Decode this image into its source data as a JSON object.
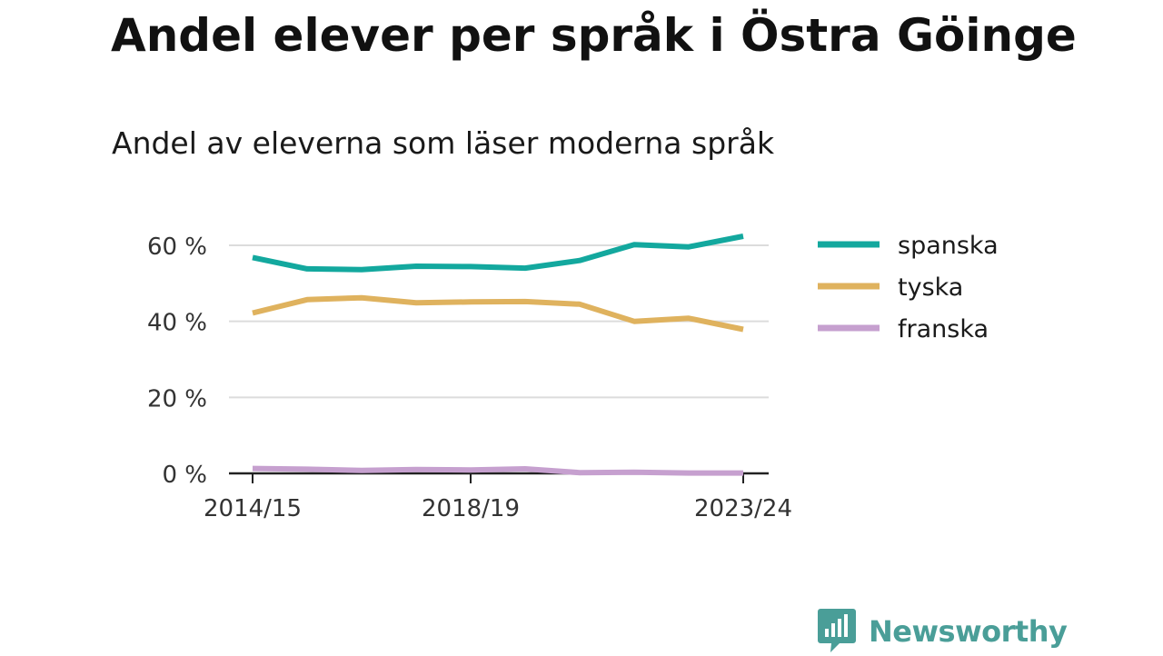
{
  "title": "Andel elever per språk i Östra Göinge",
  "subtitle": "Andel av eleverna som läser moderna språk",
  "brand": {
    "name": "Newsworthy",
    "icon": "newsworthy-logo-icon",
    "color": "#4a9e98"
  },
  "chart_data": {
    "type": "line",
    "x": [
      "2014/15",
      "2015/16",
      "2016/17",
      "2017/18",
      "2018/19",
      "2019/20",
      "2020/21",
      "2021/22",
      "2022/23",
      "2023/24"
    ],
    "x_tick_labels": [
      "2014/15",
      "2018/19",
      "2023/24"
    ],
    "y_ticks": [
      "0 %",
      "20 %",
      "40 %",
      "60 %"
    ],
    "y_tick_values": [
      0,
      20,
      40,
      60
    ],
    "ylim": [
      0,
      63
    ],
    "grid": true,
    "legend_position": "right",
    "series": [
      {
        "name": "spanska",
        "color": "#13a89e",
        "values": [
          56.8,
          53.8,
          53.6,
          54.5,
          54.4,
          54.0,
          56.0,
          60.2,
          59.6,
          62.4
        ]
      },
      {
        "name": "tyska",
        "color": "#dfb25e",
        "values": [
          42.2,
          45.7,
          46.2,
          44.9,
          45.1,
          45.2,
          44.5,
          40.0,
          40.8,
          37.9
        ]
      },
      {
        "name": "franska",
        "color": "#c6a0cf",
        "values": [
          1.3,
          1.1,
          0.8,
          1.0,
          0.9,
          1.2,
          0.2,
          0.3,
          0.1,
          0.1
        ]
      }
    ]
  }
}
